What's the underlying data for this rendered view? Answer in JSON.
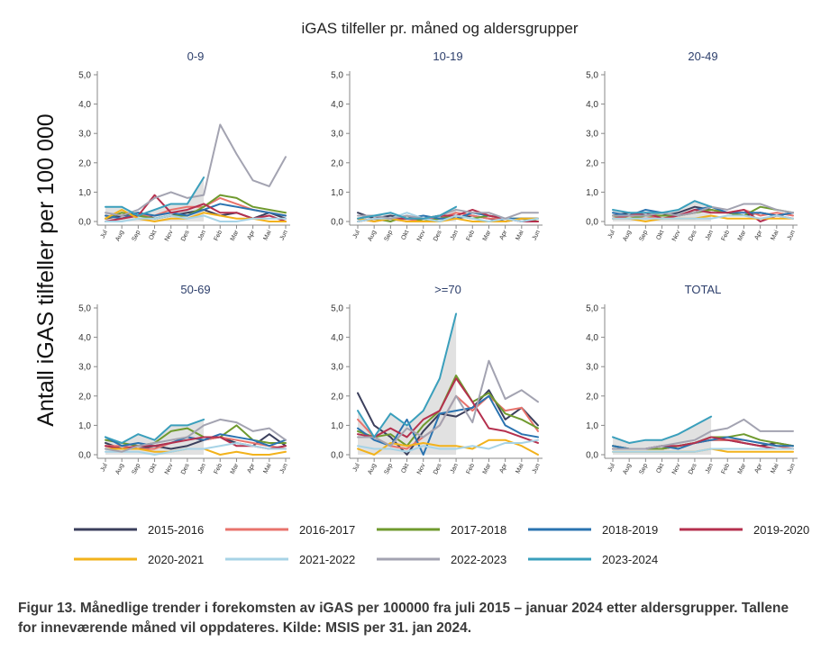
{
  "chart_data": {
    "type": "line",
    "title": "iGAS tilfeller pr. måned og aldersgrupper",
    "ylabel": "Antall iGAS tilfeller per 100 000",
    "ylim": [
      0,
      5
    ],
    "yticks": [
      "0,0",
      "1,0",
      "2,0",
      "3,0",
      "4,0",
      "5,0"
    ],
    "months": [
      "Jul",
      "Aug",
      "Sep",
      "Okt",
      "Nov",
      "Des",
      "Jan",
      "Feb",
      "Mar",
      "Apr",
      "Mai",
      "Jun"
    ],
    "grid": false,
    "legend_position": "bottom",
    "series_names": [
      "2015-2016",
      "2016-2017",
      "2017-2018",
      "2018-2019",
      "2019-2020",
      "2020-2021",
      "2021-2022",
      "2022-2023",
      "2023-2024"
    ],
    "series_colors": [
      "#3b3f5c",
      "#e8736c",
      "#6f9a2e",
      "#2a73b0",
      "#b5304e",
      "#f2b21b",
      "#a7d3e6",
      "#a3a3b1",
      "#3a9fbc"
    ],
    "current_season_shading": "#dcdcdc",
    "panels": [
      {
        "title": "0-9",
        "series": [
          {
            "name": "2015-2016",
            "values": [
              0.1,
              0.2,
              0.3,
              0.1,
              0.2,
              0.3,
              0.4,
              0.2,
              0.3,
              0.1,
              0.3,
              0.1
            ]
          },
          {
            "name": "2016-2017",
            "values": [
              0.2,
              0.1,
              0.2,
              0.2,
              0.4,
              0.5,
              0.5,
              0.8,
              0.6,
              0.4,
              0.3,
              0.2
            ]
          },
          {
            "name": "2017-2018",
            "values": [
              0.1,
              0.3,
              0.2,
              0.1,
              0.2,
              0.2,
              0.5,
              0.9,
              0.8,
              0.5,
              0.4,
              0.3
            ]
          },
          {
            "name": "2018-2019",
            "values": [
              0.2,
              0.1,
              0.3,
              0.2,
              0.3,
              0.2,
              0.4,
              0.6,
              0.5,
              0.4,
              0.3,
              0.2
            ]
          },
          {
            "name": "2019-2020",
            "values": [
              0.0,
              0.1,
              0.2,
              0.9,
              0.3,
              0.4,
              0.6,
              0.3,
              0.3,
              0.1,
              0.2,
              0.0
            ]
          },
          {
            "name": "2020-2021",
            "values": [
              0.1,
              0.4,
              0.1,
              0.0,
              0.1,
              0.1,
              0.3,
              0.2,
              0.1,
              0.1,
              0.0,
              0.0
            ]
          },
          {
            "name": "2021-2022",
            "values": [
              0.0,
              0.0,
              0.1,
              0.1,
              0.2,
              0.1,
              0.2,
              0.0,
              0.0,
              0.1,
              0.1,
              0.1
            ]
          },
          {
            "name": "2022-2023",
            "values": [
              0.3,
              0.2,
              0.4,
              0.8,
              1.0,
              0.8,
              0.9,
              3.3,
              2.3,
              1.4,
              1.2,
              2.2
            ]
          },
          {
            "name": "2023-2024",
            "values": [
              0.5,
              0.5,
              0.2,
              0.4,
              0.6,
              0.6,
              1.5
            ]
          }
        ]
      },
      {
        "title": "10-19",
        "series": [
          {
            "name": "2015-2016",
            "values": [
              0.3,
              0.1,
              0.2,
              0.1,
              0.1,
              0.2,
              0.1,
              0.2,
              0.1,
              0.0,
              0.1,
              0.1
            ]
          },
          {
            "name": "2016-2017",
            "values": [
              0.1,
              0.0,
              0.1,
              0.0,
              0.1,
              0.1,
              0.3,
              0.2,
              0.1,
              0.1,
              0.0,
              0.1
            ]
          },
          {
            "name": "2017-2018",
            "values": [
              0.0,
              0.1,
              0.0,
              0.2,
              0.0,
              0.1,
              0.2,
              0.1,
              0.2,
              0.1,
              0.1,
              0.0
            ]
          },
          {
            "name": "2018-2019",
            "values": [
              0.1,
              0.2,
              0.1,
              0.1,
              0.2,
              0.1,
              0.1,
              0.3,
              0.2,
              0.1,
              0.1,
              0.1
            ]
          },
          {
            "name": "2019-2020",
            "values": [
              0.0,
              0.1,
              0.1,
              0.1,
              0.1,
              0.2,
              0.2,
              0.4,
              0.2,
              0.1,
              0.0,
              0.0
            ]
          },
          {
            "name": "2020-2021",
            "values": [
              0.1,
              0.0,
              0.1,
              0.0,
              0.0,
              0.0,
              0.1,
              0.0,
              0.0,
              0.0,
              0.1,
              0.1
            ]
          },
          {
            "name": "2021-2022",
            "values": [
              0.0,
              0.1,
              0.1,
              0.3,
              0.1,
              0.0,
              0.2,
              0.1,
              0.0,
              0.1,
              0.0,
              0.1
            ]
          },
          {
            "name": "2022-2023",
            "values": [
              0.2,
              0.2,
              0.1,
              0.2,
              0.1,
              0.2,
              0.4,
              0.3,
              0.3,
              0.1,
              0.3,
              0.3
            ]
          },
          {
            "name": "2023-2024",
            "values": [
              0.1,
              0.2,
              0.3,
              0.1,
              0.1,
              0.2,
              0.5
            ]
          }
        ]
      },
      {
        "title": "20-49",
        "series": [
          {
            "name": "2015-2016",
            "values": [
              0.2,
              0.3,
              0.2,
              0.2,
              0.3,
              0.5,
              0.4,
              0.3,
              0.2,
              0.3,
              0.2,
              0.3
            ]
          },
          {
            "name": "2016-2017",
            "values": [
              0.1,
              0.2,
              0.1,
              0.2,
              0.2,
              0.3,
              0.4,
              0.3,
              0.4,
              0.2,
              0.3,
              0.2
            ]
          },
          {
            "name": "2017-2018",
            "values": [
              0.2,
              0.1,
              0.2,
              0.2,
              0.2,
              0.3,
              0.4,
              0.3,
              0.2,
              0.5,
              0.4,
              0.3
            ]
          },
          {
            "name": "2018-2019",
            "values": [
              0.3,
              0.2,
              0.4,
              0.3,
              0.2,
              0.4,
              0.5,
              0.3,
              0.3,
              0.3,
              0.2,
              0.3
            ]
          },
          {
            "name": "2019-2020",
            "values": [
              0.1,
              0.2,
              0.3,
              0.1,
              0.2,
              0.4,
              0.3,
              0.3,
              0.4,
              0.0,
              0.2,
              0.1
            ]
          },
          {
            "name": "2020-2021",
            "values": [
              0.1,
              0.1,
              0.0,
              0.1,
              0.1,
              0.1,
              0.2,
              0.1,
              0.1,
              0.1,
              0.1,
              0.1
            ]
          },
          {
            "name": "2021-2022",
            "values": [
              0.1,
              0.1,
              0.1,
              0.1,
              0.1,
              0.1,
              0.1,
              0.2,
              0.2,
              0.1,
              0.2,
              0.1
            ]
          },
          {
            "name": "2022-2023",
            "values": [
              0.2,
              0.2,
              0.2,
              0.3,
              0.2,
              0.3,
              0.5,
              0.4,
              0.6,
              0.6,
              0.4,
              0.3
            ]
          },
          {
            "name": "2023-2024",
            "values": [
              0.4,
              0.3,
              0.3,
              0.3,
              0.4,
              0.7,
              0.5
            ]
          }
        ]
      },
      {
        "title": "50-69",
        "series": [
          {
            "name": "2015-2016",
            "values": [
              0.4,
              0.2,
              0.2,
              0.3,
              0.2,
              0.3,
              0.5,
              0.6,
              0.4,
              0.3,
              0.7,
              0.3
            ]
          },
          {
            "name": "2016-2017",
            "values": [
              0.3,
              0.3,
              0.2,
              0.2,
              0.4,
              0.6,
              0.5,
              0.6,
              0.5,
              0.4,
              0.3,
              0.2
            ]
          },
          {
            "name": "2017-2018",
            "values": [
              0.5,
              0.4,
              0.3,
              0.4,
              0.8,
              0.9,
              0.6,
              0.6,
              1.0,
              0.5,
              0.4,
              0.4
            ]
          },
          {
            "name": "2018-2019",
            "values": [
              0.6,
              0.3,
              0.4,
              0.3,
              0.4,
              0.6,
              0.5,
              0.7,
              0.6,
              0.5,
              0.3,
              0.5
            ]
          },
          {
            "name": "2019-2020",
            "values": [
              0.3,
              0.2,
              0.3,
              0.3,
              0.4,
              0.5,
              0.6,
              0.6,
              0.3,
              0.3,
              0.2,
              0.3
            ]
          },
          {
            "name": "2020-2021",
            "values": [
              0.2,
              0.2,
              0.2,
              0.1,
              0.1,
              0.2,
              0.2,
              0.0,
              0.1,
              0.0,
              0.0,
              0.1
            ]
          },
          {
            "name": "2021-2022",
            "values": [
              0.1,
              0.1,
              0.1,
              0.0,
              0.1,
              0.2,
              0.2,
              0.3,
              0.4,
              0.3,
              0.2,
              0.2
            ]
          },
          {
            "name": "2022-2023",
            "values": [
              0.2,
              0.1,
              0.3,
              0.4,
              0.5,
              0.6,
              1.0,
              1.2,
              1.1,
              0.8,
              0.9,
              0.5
            ]
          },
          {
            "name": "2023-2024",
            "values": [
              0.6,
              0.4,
              0.7,
              0.5,
              1.0,
              1.0,
              1.2
            ]
          }
        ]
      },
      {
        "title": ">=70",
        "series": [
          {
            "name": "2015-2016",
            "values": [
              2.1,
              1.0,
              0.6,
              0.0,
              0.8,
              1.4,
              1.3,
              1.6,
              2.2,
              1.2,
              1.6,
              1.0
            ]
          },
          {
            "name": "2016-2017",
            "values": [
              1.2,
              0.6,
              0.3,
              0.2,
              0.6,
              1.0,
              2.0,
              1.5,
              2.0,
              1.5,
              1.6,
              0.8
            ]
          },
          {
            "name": "2017-2018",
            "values": [
              0.8,
              0.6,
              0.7,
              0.3,
              1.0,
              1.5,
              2.7,
              1.8,
              2.1,
              1.4,
              1.2,
              0.9
            ]
          },
          {
            "name": "2018-2019",
            "values": [
              0.9,
              0.5,
              0.3,
              1.2,
              0.0,
              1.4,
              1.5,
              1.6,
              2.0,
              1.0,
              0.7,
              0.6
            ]
          },
          {
            "name": "2019-2020",
            "values": [
              0.7,
              0.6,
              0.9,
              0.6,
              1.2,
              1.5,
              2.6,
              1.8,
              0.9,
              0.8,
              0.6,
              0.4
            ]
          },
          {
            "name": "2020-2021",
            "values": [
              0.2,
              0.0,
              0.4,
              0.3,
              0.4,
              0.3,
              0.3,
              0.2,
              0.5,
              0.5,
              0.3,
              0.0
            ]
          },
          {
            "name": "2021-2022",
            "values": [
              0.3,
              0.2,
              0.2,
              0.1,
              0.3,
              0.2,
              0.2,
              0.3,
              0.2,
              0.4,
              0.4,
              0.5
            ]
          },
          {
            "name": "2022-2023",
            "values": [
              0.6,
              0.6,
              0.3,
              0.9,
              0.6,
              1.0,
              2.0,
              1.1,
              3.2,
              1.9,
              2.2,
              1.8
            ]
          },
          {
            "name": "2023-2024",
            "values": [
              1.5,
              0.6,
              1.4,
              1.0,
              1.5,
              2.6,
              4.8
            ]
          }
        ]
      },
      {
        "title": "TOTAL",
        "series": [
          {
            "name": "2015-2016",
            "values": [
              0.3,
              0.2,
              0.2,
              0.2,
              0.3,
              0.4,
              0.5,
              0.5,
              0.4,
              0.3,
              0.4,
              0.3
            ]
          },
          {
            "name": "2016-2017",
            "values": [
              0.2,
              0.2,
              0.2,
              0.2,
              0.3,
              0.4,
              0.5,
              0.5,
              0.5,
              0.4,
              0.3,
              0.2
            ]
          },
          {
            "name": "2017-2018",
            "values": [
              0.3,
              0.2,
              0.2,
              0.2,
              0.3,
              0.4,
              0.6,
              0.6,
              0.7,
              0.5,
              0.4,
              0.3
            ]
          },
          {
            "name": "2018-2019",
            "values": [
              0.3,
              0.2,
              0.2,
              0.3,
              0.2,
              0.4,
              0.5,
              0.6,
              0.5,
              0.4,
              0.3,
              0.3
            ]
          },
          {
            "name": "2019-2020",
            "values": [
              0.2,
              0.2,
              0.2,
              0.3,
              0.3,
              0.4,
              0.6,
              0.5,
              0.4,
              0.3,
              0.2,
              0.2
            ]
          },
          {
            "name": "2020-2021",
            "values": [
              0.1,
              0.1,
              0.1,
              0.1,
              0.1,
              0.1,
              0.2,
              0.1,
              0.1,
              0.1,
              0.1,
              0.1
            ]
          },
          {
            "name": "2021-2022",
            "values": [
              0.1,
              0.1,
              0.1,
              0.1,
              0.1,
              0.1,
              0.2,
              0.2,
              0.2,
              0.2,
              0.2,
              0.2
            ]
          },
          {
            "name": "2022-2023",
            "values": [
              0.2,
              0.2,
              0.2,
              0.3,
              0.4,
              0.5,
              0.8,
              0.9,
              1.2,
              0.8,
              0.8,
              0.8
            ]
          },
          {
            "name": "2023-2024",
            "values": [
              0.6,
              0.4,
              0.5,
              0.5,
              0.7,
              1.0,
              1.3
            ]
          }
        ]
      }
    ]
  },
  "caption": {
    "text": "Figur 13. Månedlige trender i forekomsten av iGAS per 100000 fra juli 2015 – januar 2024 etter aldersgrupper. Tallene for inneværende måned vil oppdateres. Kilde: MSIS per 31. jan 2024."
  }
}
